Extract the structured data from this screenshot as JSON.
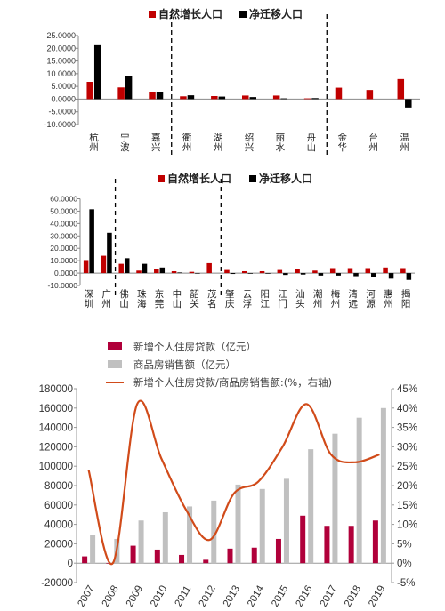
{
  "colors": {
    "natural": "#c00000",
    "migration": "#000000",
    "loan_bar": "#b0003a",
    "sales_bar": "#c0c0c0",
    "ratio_line": "#d14b1a"
  },
  "chart_data": [
    {
      "type": "bar",
      "legend": [
        "自然增长人口",
        "净迁移人口"
      ],
      "categories": [
        "杭州",
        "宁波",
        "嘉兴",
        "衢州",
        "湖州",
        "绍兴",
        "丽水",
        "舟山",
        "金华",
        "台州",
        "温州"
      ],
      "series": [
        {
          "name": "自然增长人口",
          "values": [
            6.8,
            4.6,
            2.9,
            1.1,
            1.2,
            1.4,
            1.4,
            0.3,
            4.5,
            3.6,
            7.9
          ]
        },
        {
          "name": "净迁移人口",
          "values": [
            21.2,
            9.0,
            2.9,
            1.5,
            1.0,
            0.8,
            0.3,
            0.4,
            0,
            0,
            -3.3
          ]
        }
      ],
      "yticks": [
        "25.0000",
        "20.0000",
        "15.0000",
        "10.0000",
        "5.0000",
        "0.0000",
        "-5.0000",
        "-10.0000"
      ],
      "ylim": [
        -10,
        25
      ],
      "dividers_after": [
        2,
        7
      ]
    },
    {
      "type": "bar",
      "legend": [
        "自然增长人口",
        "净迁移人口"
      ],
      "categories": [
        "深圳",
        "广州",
        "佛山",
        "珠海",
        "东莞",
        "中山",
        "韶关",
        "茂名",
        "肇庆",
        "云浮",
        "阳江",
        "江门",
        "汕头",
        "潮州",
        "梅州",
        "清远",
        "河源",
        "惠州",
        "揭阳"
      ],
      "series": [
        {
          "name": "自然增长人口",
          "values": [
            10.5,
            14.0,
            7.5,
            2.0,
            3.5,
            1.5,
            1.0,
            8.0,
            2.5,
            1.5,
            1.5,
            2.5,
            3.5,
            2.0,
            4.0,
            4.0,
            4.0,
            4.5,
            4.0
          ]
        },
        {
          "name": "净迁移人口",
          "values": [
            51.5,
            32.5,
            12.0,
            7.5,
            4.5,
            0.5,
            -0.3,
            0,
            -0.7,
            -0.5,
            -0.5,
            -1.5,
            -1.2,
            -2.0,
            -2.0,
            -2.5,
            -3.0,
            -4.5,
            -5.5
          ]
        }
      ],
      "yticks": [
        "60.0000",
        "50.0000",
        "40.0000",
        "30.0000",
        "20.0000",
        "10.0000",
        "0.0000",
        "-10.0000"
      ],
      "ylim": [
        -10,
        60
      ],
      "dividers_after": [
        1,
        7
      ]
    },
    {
      "type": "bar",
      "legend": [
        "新增个人住房贷款（亿元）",
        "商品房销售额（亿元）",
        "新增个人住房贷款/商品房销售额:(%，右轴)"
      ],
      "categories": [
        "2007",
        "2008",
        "2009",
        "2010",
        "2011",
        "2012",
        "2013",
        "2014",
        "2015",
        "2016",
        "2017",
        "2018",
        "2019"
      ],
      "series": [
        {
          "name": "新增个人住房贷款（亿元）",
          "values": [
            7000,
            -500,
            18000,
            14000,
            8500,
            3500,
            15000,
            16000,
            25000,
            49000,
            38500,
            38500,
            44000
          ]
        },
        {
          "name": "商品房销售额（亿元）",
          "values": [
            29500,
            25000,
            44000,
            52500,
            58500,
            64500,
            81000,
            76500,
            87000,
            117500,
            133500,
            150000,
            160000
          ]
        },
        {
          "name": "新增个人住房贷款/商品房销售额:(%，右轴)",
          "values": [
            24,
            0,
            41,
            27,
            14,
            6,
            18,
            21,
            30,
            41,
            28,
            26,
            28
          ]
        }
      ],
      "yticks_left": [
        "180000",
        "160000",
        "140000",
        "120000",
        "100000",
        "80000",
        "60000",
        "40000",
        "20000",
        "0",
        "-20000"
      ],
      "yticks_right": [
        "45%",
        "40%",
        "35%",
        "30%",
        "25%",
        "20%",
        "15%",
        "10%",
        "5%",
        "0%",
        "-5%"
      ],
      "ylim_left": [
        -20000,
        180000
      ],
      "ylim_right": [
        -5,
        45
      ]
    }
  ]
}
